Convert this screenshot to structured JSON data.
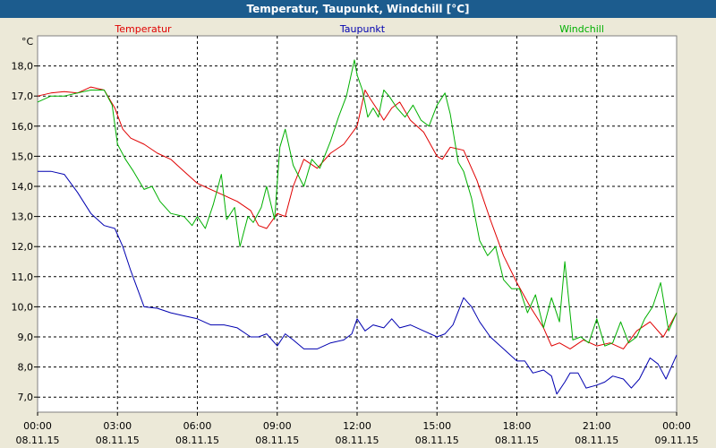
{
  "window": {
    "title": "Temperatur, Taupunkt, Windchill [°C]"
  },
  "chart_data": {
    "type": "line",
    "title": "Temperatur, Taupunkt, Windchill [°C]",
    "ylabel": "°C",
    "ylim": [
      6.5,
      19.0
    ],
    "xlim": [
      0,
      24
    ],
    "yticks": [
      "7,0",
      "8,0",
      "9,0",
      "10,0",
      "11,0",
      "12,0",
      "13,0",
      "14,0",
      "15,0",
      "16,0",
      "17,0",
      "18,0"
    ],
    "ytick_values": [
      7,
      8,
      9,
      10,
      11,
      12,
      13,
      14,
      15,
      16,
      17,
      18
    ],
    "xticks": [
      {
        "h": 0,
        "time": "00:00",
        "date": "08.11.15"
      },
      {
        "h": 3,
        "time": "03:00",
        "date": "08.11.15"
      },
      {
        "h": 6,
        "time": "06:00",
        "date": "08.11.15"
      },
      {
        "h": 9,
        "time": "09:00",
        "date": "08.11.15"
      },
      {
        "h": 12,
        "time": "12:00",
        "date": "08.11.15"
      },
      {
        "h": 15,
        "time": "15:00",
        "date": "08.11.15"
      },
      {
        "h": 18,
        "time": "18:00",
        "date": "08.11.15"
      },
      {
        "h": 21,
        "time": "21:00",
        "date": "08.11.15"
      },
      {
        "h": 24,
        "time": "00:00",
        "date": "09.11.15"
      }
    ],
    "grid": true,
    "series": [
      {
        "name": "Temperatur",
        "color": "#e00000",
        "legend_pos": "left",
        "x": [
          0,
          0.5,
          1,
          1.5,
          2,
          2.5,
          2.9,
          3.2,
          3.5,
          4,
          4.5,
          5,
          5.5,
          6,
          6.5,
          7,
          7.5,
          8,
          8.3,
          8.6,
          9,
          9.3,
          9.6,
          10,
          10.5,
          11,
          11.5,
          12,
          12.3,
          12.5,
          12.8,
          13,
          13.3,
          13.6,
          14,
          14.5,
          15,
          15.2,
          15.5,
          16,
          16.5,
          17,
          17.5,
          18,
          18.5,
          19,
          19.3,
          19.6,
          20,
          20.5,
          21,
          21.5,
          22,
          22.5,
          23,
          23.5,
          24
        ],
        "values": [
          17.0,
          17.1,
          17.15,
          17.1,
          17.3,
          17.2,
          16.6,
          15.9,
          15.6,
          15.4,
          15.1,
          14.9,
          14.5,
          14.1,
          13.9,
          13.7,
          13.5,
          13.2,
          12.7,
          12.6,
          13.1,
          13.0,
          14.0,
          14.9,
          14.6,
          15.1,
          15.4,
          16.0,
          17.2,
          16.9,
          16.5,
          16.2,
          16.6,
          16.8,
          16.2,
          15.8,
          15.0,
          14.9,
          15.3,
          15.2,
          14.2,
          12.9,
          11.7,
          10.8,
          10.0,
          9.3,
          8.7,
          8.8,
          8.6,
          8.9,
          8.7,
          8.8,
          8.6,
          9.2,
          9.5,
          9.0,
          9.8
        ]
      },
      {
        "name": "Taupunkt",
        "color": "#0000b0",
        "legend_pos": "center",
        "x": [
          0,
          0.5,
          1,
          1.5,
          2,
          2.5,
          2.9,
          3.2,
          3.5,
          4,
          4.5,
          5,
          5.5,
          6,
          6.5,
          7,
          7.5,
          8,
          8.3,
          8.6,
          9,
          9.3,
          9.6,
          10,
          10.5,
          11,
          11.5,
          11.8,
          12,
          12.3,
          12.6,
          13,
          13.3,
          13.6,
          14,
          14.5,
          15,
          15.3,
          15.6,
          16,
          16.3,
          16.6,
          17,
          17.5,
          18,
          18.3,
          18.6,
          19,
          19.3,
          19.5,
          19.8,
          20,
          20.3,
          20.6,
          21,
          21.3,
          21.6,
          22,
          22.3,
          22.6,
          23,
          23.3,
          23.6,
          24
        ],
        "values": [
          14.5,
          14.5,
          14.4,
          13.8,
          13.1,
          12.7,
          12.6,
          12.0,
          11.2,
          10.0,
          9.95,
          9.8,
          9.7,
          9.6,
          9.4,
          9.4,
          9.3,
          9.0,
          9.0,
          9.1,
          8.7,
          9.1,
          8.9,
          8.6,
          8.6,
          8.8,
          8.9,
          9.1,
          9.6,
          9.2,
          9.4,
          9.3,
          9.6,
          9.3,
          9.4,
          9.2,
          9.0,
          9.1,
          9.4,
          10.3,
          10.0,
          9.5,
          9.0,
          8.6,
          8.2,
          8.2,
          7.8,
          7.9,
          7.7,
          7.1,
          7.5,
          7.8,
          7.8,
          7.3,
          7.4,
          7.5,
          7.7,
          7.6,
          7.3,
          7.6,
          8.3,
          8.1,
          7.6,
          8.4
        ]
      },
      {
        "name": "Windchill",
        "color": "#00b000",
        "legend_pos": "right",
        "x": [
          0,
          0.5,
          1,
          1.5,
          2,
          2.5,
          2.8,
          3.0,
          3.3,
          3.6,
          4,
          4.3,
          4.6,
          5,
          5.5,
          5.8,
          6,
          6.3,
          6.6,
          6.9,
          7.1,
          7.4,
          7.6,
          7.9,
          8.1,
          8.4,
          8.6,
          8.9,
          9.1,
          9.3,
          9.6,
          10,
          10.3,
          10.6,
          11,
          11.3,
          11.6,
          11.9,
          12,
          12.2,
          12.4,
          12.6,
          12.8,
          13,
          13.2,
          13.5,
          13.8,
          14.1,
          14.4,
          14.7,
          15,
          15.3,
          15.5,
          15.8,
          16,
          16.3,
          16.6,
          16.9,
          17.2,
          17.5,
          17.8,
          18.1,
          18.4,
          18.7,
          19,
          19.3,
          19.6,
          19.8,
          20.1,
          20.4,
          20.7,
          21.0,
          21.3,
          21.6,
          21.9,
          22.2,
          22.5,
          22.8,
          23.1,
          23.4,
          23.7,
          24
        ],
        "values": [
          16.8,
          17.0,
          17.0,
          17.1,
          17.2,
          17.2,
          16.7,
          15.4,
          14.9,
          14.5,
          13.9,
          14.0,
          13.5,
          13.1,
          13.0,
          12.7,
          13.0,
          12.6,
          13.4,
          14.4,
          12.9,
          13.3,
          12.0,
          13.0,
          12.8,
          13.3,
          14.0,
          12.9,
          15.3,
          15.9,
          14.7,
          14.0,
          14.9,
          14.6,
          15.5,
          16.3,
          17.0,
          18.2,
          17.7,
          17.2,
          16.3,
          16.6,
          16.3,
          17.2,
          17.0,
          16.6,
          16.3,
          16.7,
          16.2,
          16.0,
          16.7,
          17.1,
          16.4,
          14.8,
          14.5,
          13.6,
          12.2,
          11.7,
          12.0,
          10.9,
          10.6,
          10.6,
          9.8,
          10.4,
          9.3,
          10.3,
          9.5,
          11.5,
          8.9,
          9.0,
          8.8,
          9.6,
          8.7,
          8.8,
          9.5,
          8.8,
          9.0,
          9.6,
          10.0,
          10.8,
          9.2,
          9.8
        ]
      }
    ]
  }
}
